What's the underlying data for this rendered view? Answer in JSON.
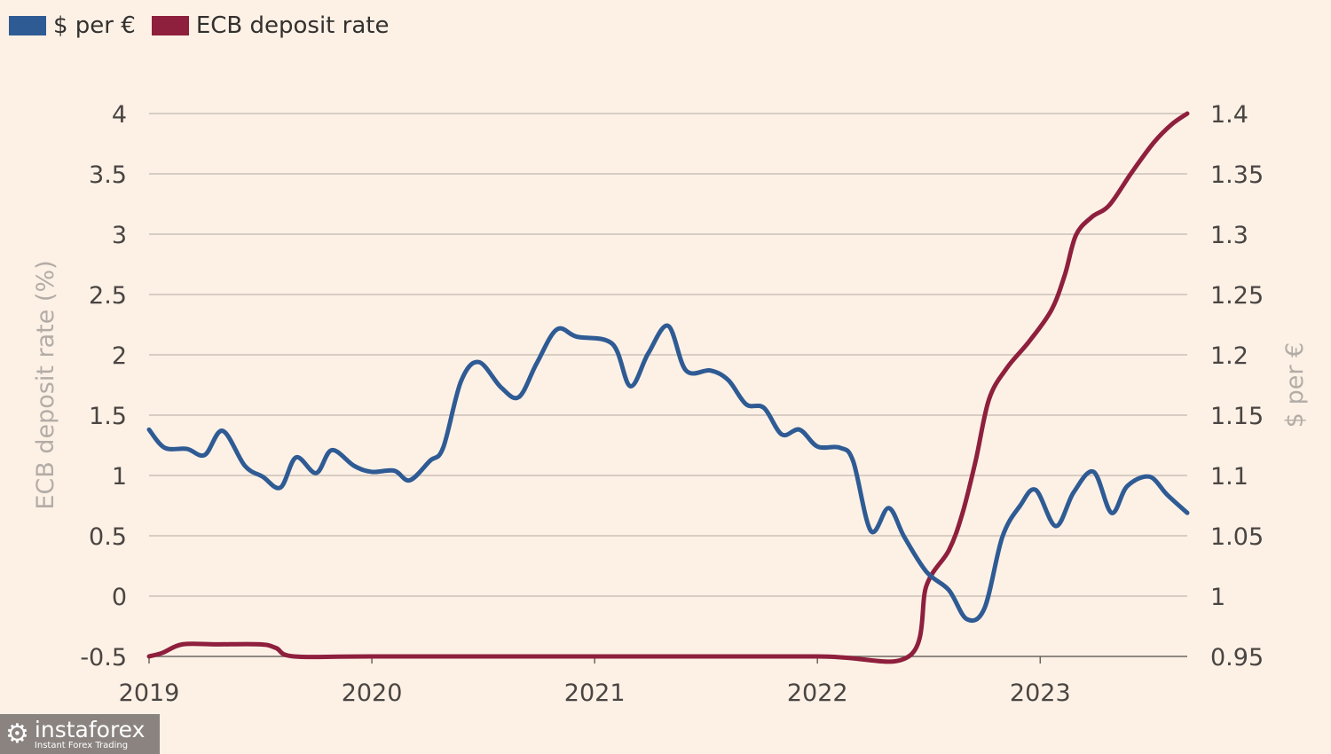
{
  "chart_data": {
    "type": "line",
    "title": "",
    "legend": [
      "$ per €",
      "ECB deposit rate"
    ],
    "legend_placement": "top-left",
    "ylabel_left": "ECB deposit rate (%)",
    "ylabel_right": "$ per €",
    "x_ticks": [
      "2019",
      "2020",
      "2021",
      "2022",
      "2023"
    ],
    "y_left_ticks": [
      "-0.5",
      "0",
      "0.5",
      "1",
      "1.5",
      "2",
      "2.5",
      "3",
      "3.5",
      "4"
    ],
    "y_right_ticks": [
      "0.95",
      "1",
      "1.05",
      "1.1",
      "1.15",
      "1.2",
      "1.25",
      "1.3",
      "1.35",
      "1.4"
    ],
    "ylim_left": [
      -0.5,
      4
    ],
    "ylim_right": [
      0.95,
      1.4
    ],
    "xlim": [
      2019,
      2023.66
    ],
    "grid": true,
    "series": [
      {
        "name": "$ per €",
        "axis": "right",
        "color": "#2f5b94",
        "x": [
          2019.0,
          2019.07,
          2019.17,
          2019.25,
          2019.33,
          2019.43,
          2019.51,
          2019.59,
          2019.66,
          2019.75,
          2019.82,
          2019.92,
          2020.0,
          2020.1,
          2020.17,
          2020.26,
          2020.32,
          2020.4,
          2020.48,
          2020.58,
          2020.66,
          2020.74,
          2020.83,
          2020.92,
          2021.08,
          2021.16,
          2021.24,
          2021.33,
          2021.41,
          2021.52,
          2021.6,
          2021.68,
          2021.76,
          2021.84,
          2021.92,
          2022.0,
          2022.1,
          2022.16,
          2022.24,
          2022.32,
          2022.39,
          2022.49,
          2022.59,
          2022.67,
          2022.75,
          2022.83,
          2022.91,
          2022.98,
          2023.07,
          2023.15,
          2023.24,
          2023.32,
          2023.39,
          2023.49,
          2023.57,
          2023.66
        ],
        "y": [
          1.138,
          1.123,
          1.122,
          1.117,
          1.137,
          1.108,
          1.099,
          1.09,
          1.115,
          1.102,
          1.121,
          1.108,
          1.103,
          1.104,
          1.096,
          1.112,
          1.123,
          1.178,
          1.194,
          1.173,
          1.165,
          1.193,
          1.221,
          1.215,
          1.209,
          1.174,
          1.201,
          1.224,
          1.187,
          1.187,
          1.179,
          1.159,
          1.156,
          1.134,
          1.138,
          1.124,
          1.123,
          1.112,
          1.054,
          1.073,
          1.049,
          1.02,
          1.005,
          0.981,
          0.99,
          1.049,
          1.075,
          1.088,
          1.058,
          1.086,
          1.103,
          1.069,
          1.091,
          1.099,
          1.084,
          1.069
        ]
      },
      {
        "name": "ECB deposit rate",
        "axis": "left",
        "color": "#8e1f3d",
        "x": [
          2019.0,
          2019.06,
          2019.15,
          2019.3,
          2019.5,
          2019.57,
          2019.65,
          2020.0,
          2021.0,
          2022.0,
          2022.41,
          2022.49,
          2022.59,
          2022.65,
          2022.71,
          2022.77,
          2022.85,
          2022.95,
          2023.05,
          2023.11,
          2023.16,
          2023.23,
          2023.31,
          2023.41,
          2023.51,
          2023.59,
          2023.66
        ],
        "y": [
          -0.5,
          -0.47,
          -0.4,
          -0.4,
          -0.4,
          -0.43,
          -0.5,
          -0.5,
          -0.5,
          -0.5,
          -0.5,
          0.09,
          0.38,
          0.68,
          1.12,
          1.63,
          1.89,
          2.11,
          2.37,
          2.66,
          2.99,
          3.14,
          3.24,
          3.51,
          3.76,
          3.91,
          4.0
        ]
      }
    ]
  },
  "watermark": {
    "brand": "instaforex",
    "tagline": "Instant Forex Trading"
  }
}
